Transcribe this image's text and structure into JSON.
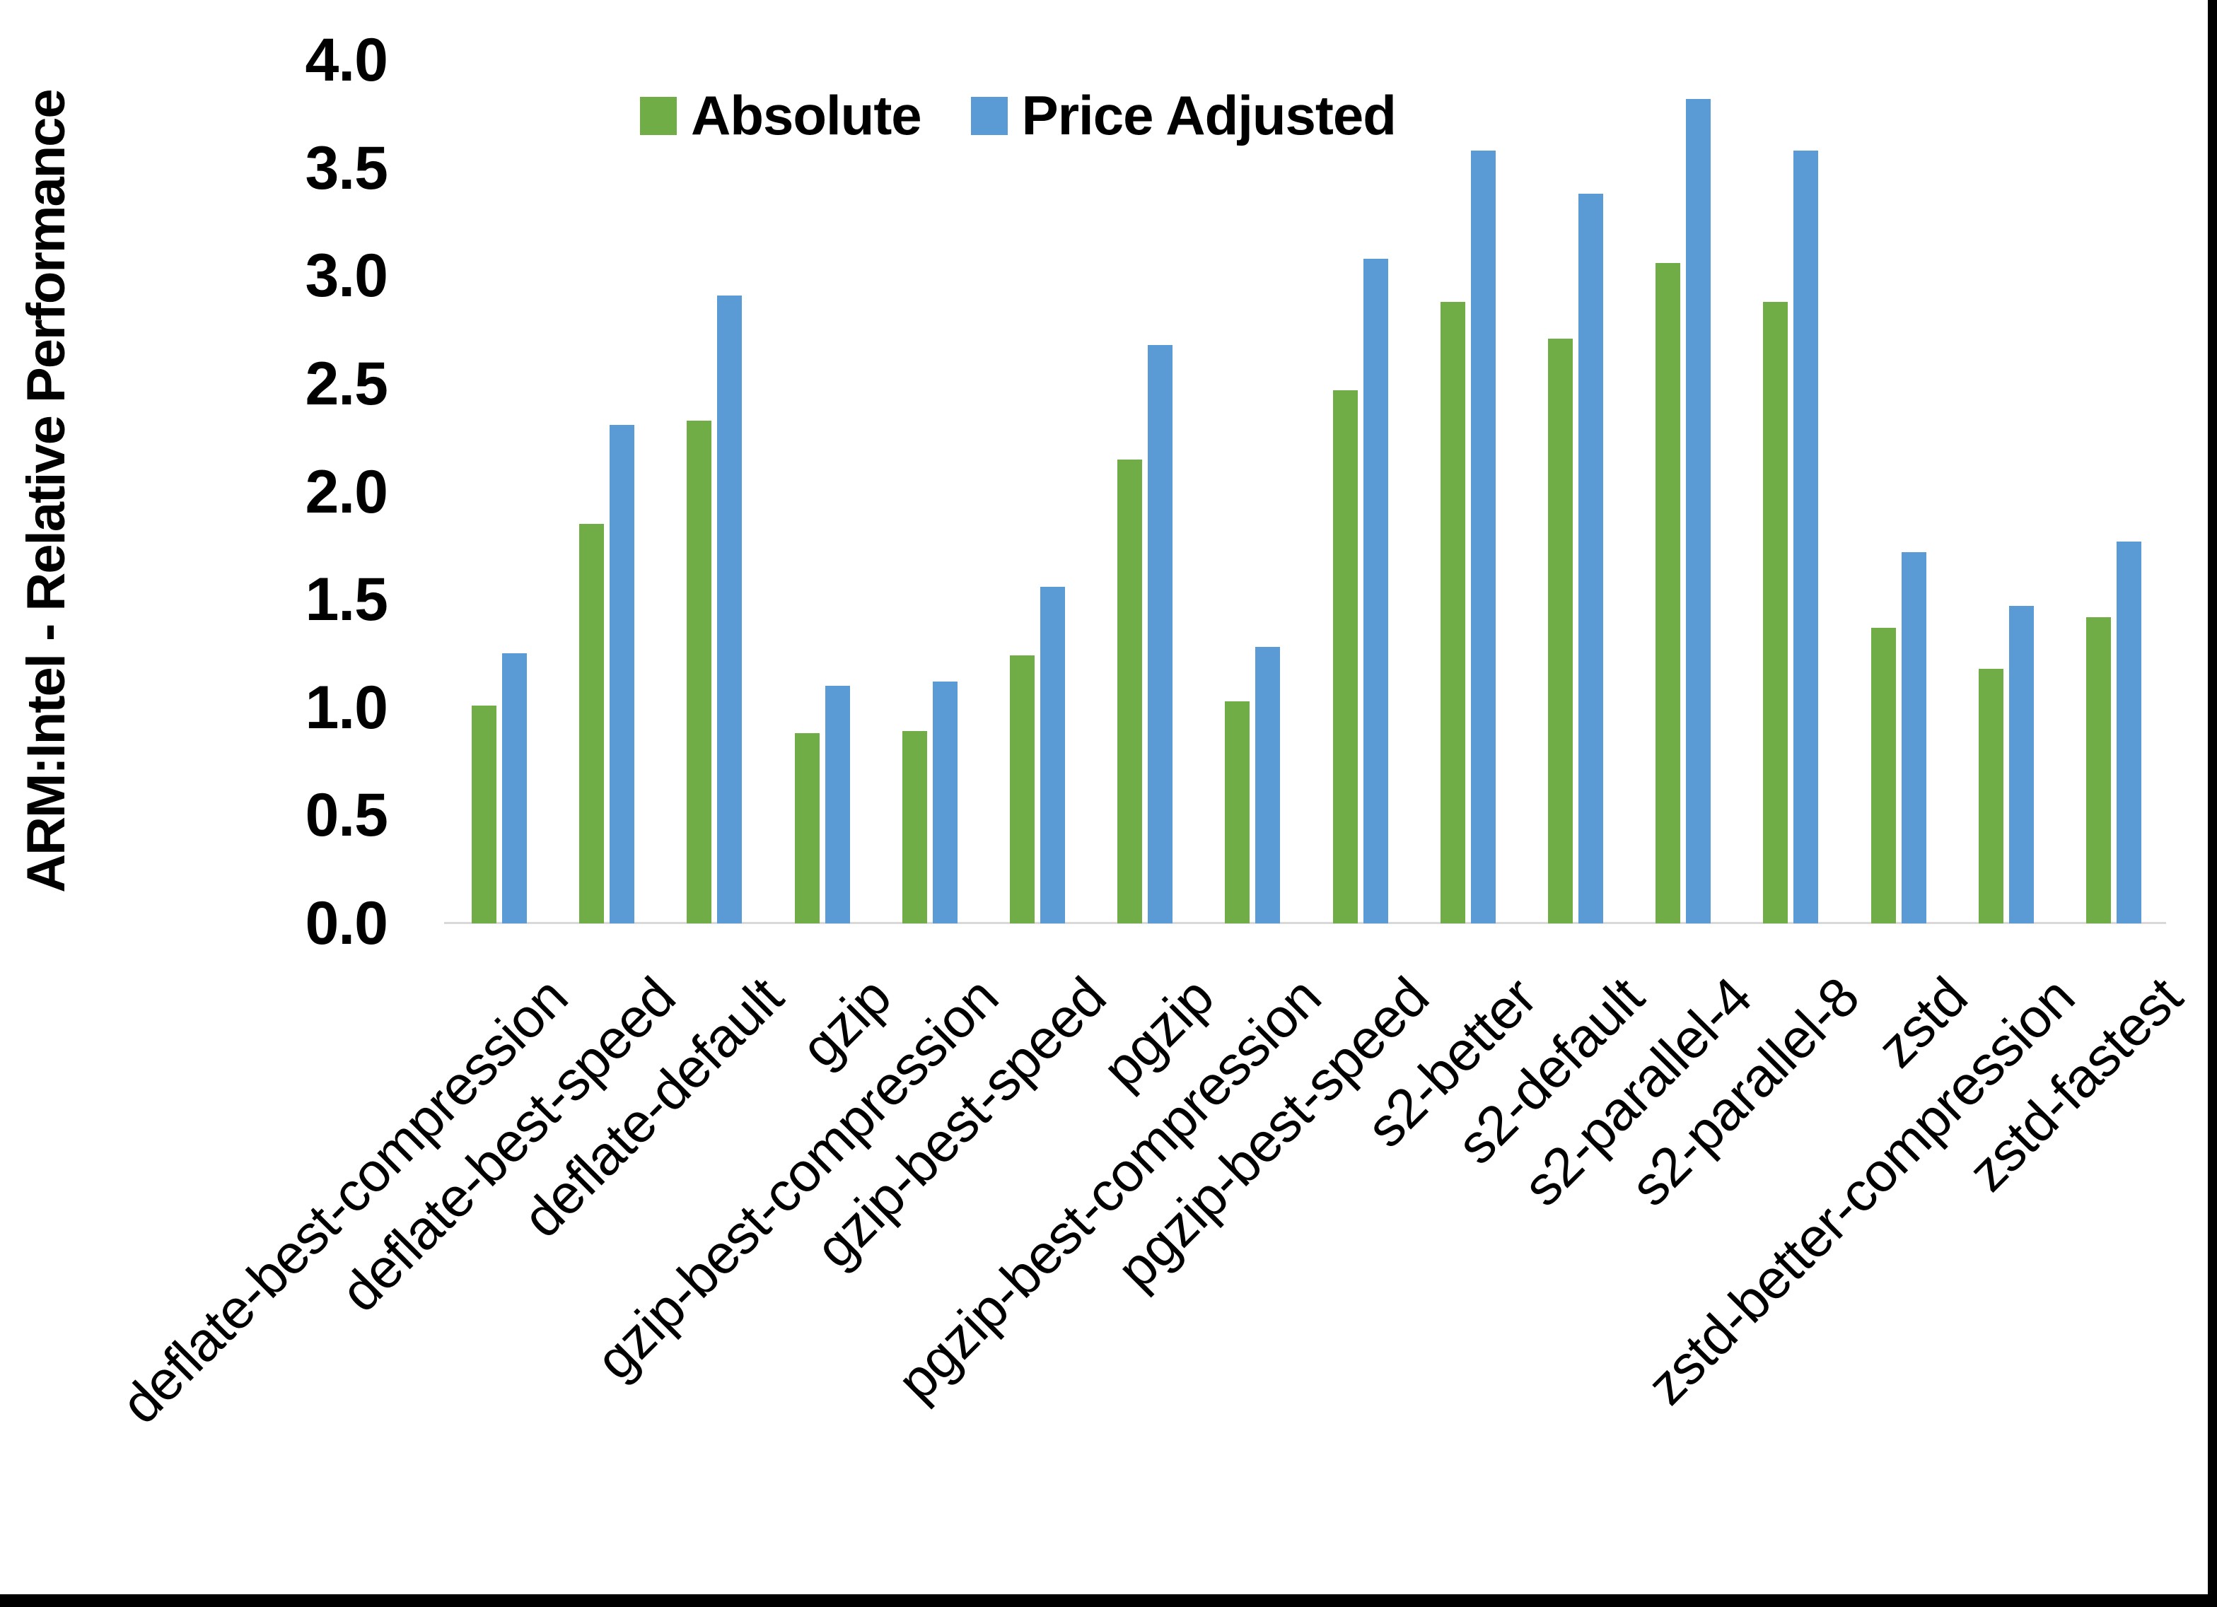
{
  "chart_data": {
    "type": "bar",
    "title": "",
    "ylabel": "ARM:Intel - Relative Performance",
    "xlabel": "",
    "ylim": [
      0.0,
      4.0
    ],
    "y_tick_step": 0.5,
    "y_tick_labels": [
      "0.0",
      "0.5",
      "1.0",
      "1.5",
      "2.0",
      "2.5",
      "3.0",
      "3.5",
      "4.0"
    ],
    "grid": false,
    "legend_position": "top-center",
    "axis_line_color": "#d9d9d9",
    "categories": [
      "deflate-best-compression",
      "deflate-best-speed",
      "deflate-default",
      "gzip",
      "gzip-best-compression",
      "gzip-best-speed",
      "pgzip",
      "pgzip-best-compression",
      "pgzip-best-speed",
      "s2-better",
      "s2-default",
      "s2-parallel-4",
      "s2-parallel-8",
      "zstd",
      "zstd-better-compression",
      "zstd-fastest"
    ],
    "series": [
      {
        "name": "Absolute",
        "color": "#70AD47",
        "values": [
          1.01,
          1.85,
          2.33,
          0.88,
          0.89,
          1.24,
          2.15,
          1.03,
          2.47,
          2.88,
          2.71,
          3.06,
          2.88,
          1.37,
          1.18,
          1.42
        ]
      },
      {
        "name": "Price Adjusted",
        "color": "#5B9BD5",
        "values": [
          1.25,
          2.31,
          2.91,
          1.1,
          1.12,
          1.56,
          2.68,
          1.28,
          3.08,
          3.58,
          3.38,
          3.82,
          3.58,
          1.72,
          1.47,
          1.77
        ]
      }
    ]
  }
}
